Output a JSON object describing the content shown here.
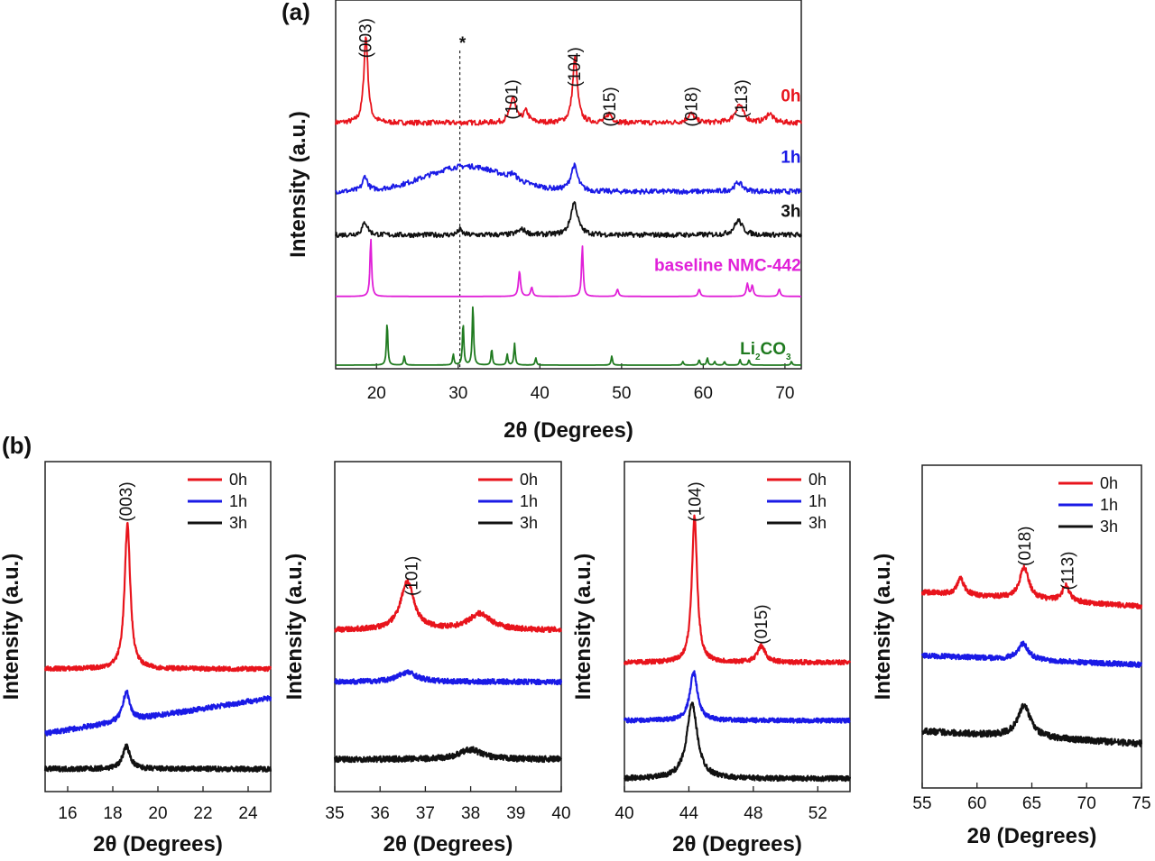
{
  "figure": {
    "panel_a_label": "(a)",
    "panel_b_label": "(b)"
  },
  "chart_data": [
    {
      "id": "a",
      "type": "line",
      "xlabel": "2θ (Degrees)",
      "ylabel": "Intensity (a.u.)",
      "xlim": [
        15,
        72
      ],
      "ylim": [
        0,
        100
      ],
      "xticks": [
        20,
        30,
        40,
        50,
        60,
        70
      ],
      "marker": {
        "x": 30.2,
        "label": "*"
      },
      "series": [
        {
          "name": "0h",
          "color": "#e8141c",
          "baseline": 68,
          "noise": 0.7,
          "label_x": 69.5,
          "label_y": 74,
          "peaks": [
            {
              "x": 18.7,
              "h": 24,
              "w": 0.3
            },
            {
              "x": 36.7,
              "h": 7,
              "w": 0.4
            },
            {
              "x": 38.3,
              "h": 3,
              "w": 0.4
            },
            {
              "x": 44.3,
              "h": 18,
              "w": 0.35
            },
            {
              "x": 48.5,
              "h": 2.5,
              "w": 0.4
            },
            {
              "x": 58.5,
              "h": 2.5,
              "w": 0.5
            },
            {
              "x": 64.4,
              "h": 5,
              "w": 0.6
            },
            {
              "x": 68.1,
              "h": 2.5,
              "w": 0.5
            }
          ]
        },
        {
          "name": "1h",
          "color": "#1a1ae6",
          "baseline": 49,
          "noise": 0.7,
          "label_x": 69.5,
          "label_y": 57,
          "hump": {
            "x": 31,
            "h": 7,
            "w": 7
          },
          "peaks": [
            {
              "x": 18.6,
              "h": 4,
              "w": 0.35
            },
            {
              "x": 36.7,
              "h": 1.5,
              "w": 0.5
            },
            {
              "x": 44.2,
              "h": 7,
              "w": 0.5
            },
            {
              "x": 64.3,
              "h": 2.5,
              "w": 0.6
            }
          ]
        },
        {
          "name": "3h",
          "color": "#111111",
          "baseline": 37,
          "noise": 0.7,
          "label_x": 69.5,
          "label_y": 42,
          "peaks": [
            {
              "x": 18.6,
              "h": 3.5,
              "w": 0.4
            },
            {
              "x": 30.2,
              "h": 1.5,
              "w": 0.3
            },
            {
              "x": 37.8,
              "h": 1.5,
              "w": 0.6
            },
            {
              "x": 44.2,
              "h": 9,
              "w": 0.5
            },
            {
              "x": 64.3,
              "h": 4,
              "w": 0.6
            }
          ]
        },
        {
          "name": "baseline NMC-442",
          "color": "#e020d8",
          "baseline": 20,
          "noise": 0,
          "label_x": 54,
          "label_y": 27,
          "peaks": [
            {
              "x": 19.3,
              "h": 16,
              "w": 0.12
            },
            {
              "x": 37.5,
              "h": 7,
              "w": 0.15
            },
            {
              "x": 39.0,
              "h": 2.5,
              "w": 0.15
            },
            {
              "x": 45.2,
              "h": 14,
              "w": 0.12
            },
            {
              "x": 49.5,
              "h": 2,
              "w": 0.15
            },
            {
              "x": 59.5,
              "h": 2,
              "w": 0.15
            },
            {
              "x": 65.4,
              "h": 3.5,
              "w": 0.15
            },
            {
              "x": 66.0,
              "h": 3,
              "w": 0.15
            },
            {
              "x": 69.3,
              "h": 2,
              "w": 0.15
            }
          ]
        },
        {
          "name": "Li2CO3",
          "color": "#1f7a1f",
          "baseline": 1,
          "noise": 0,
          "label_sub": true,
          "label_x": 64.5,
          "label_y": 4,
          "peaks": [
            {
              "x": 21.3,
              "h": 12,
              "w": 0.1
            },
            {
              "x": 23.4,
              "h": 2.5,
              "w": 0.1
            },
            {
              "x": 29.4,
              "h": 3,
              "w": 0.1
            },
            {
              "x": 30.6,
              "h": 12,
              "w": 0.1
            },
            {
              "x": 31.8,
              "h": 17,
              "w": 0.1
            },
            {
              "x": 34.1,
              "h": 4.5,
              "w": 0.1
            },
            {
              "x": 36.0,
              "h": 3,
              "w": 0.1
            },
            {
              "x": 36.9,
              "h": 6,
              "w": 0.1
            },
            {
              "x": 39.5,
              "h": 2,
              "w": 0.1
            },
            {
              "x": 48.8,
              "h": 2.5,
              "w": 0.1
            },
            {
              "x": 57.5,
              "h": 1,
              "w": 0.1
            },
            {
              "x": 59.5,
              "h": 1.5,
              "w": 0.1
            },
            {
              "x": 60.5,
              "h": 2,
              "w": 0.1
            },
            {
              "x": 61.4,
              "h": 1,
              "w": 0.1
            },
            {
              "x": 62.6,
              "h": 1,
              "w": 0.1
            },
            {
              "x": 64.5,
              "h": 1.5,
              "w": 0.1
            },
            {
              "x": 65.6,
              "h": 1.5,
              "w": 0.1
            },
            {
              "x": 70.8,
              "h": 1,
              "w": 0.1
            }
          ]
        }
      ],
      "annotations": [
        {
          "text": "(003)",
          "x": 18.7,
          "y": 97
        },
        {
          "text": "(101)",
          "x": 36.6,
          "y": 80
        },
        {
          "text": "(104)",
          "x": 44.3,
          "y": 89
        },
        {
          "text": "(015)",
          "x": 48.6,
          "y": 78
        },
        {
          "text": "(018)",
          "x": 58.6,
          "y": 78
        },
        {
          "text": "(113)",
          "x": 64.7,
          "y": 80
        }
      ]
    },
    {
      "id": "b1",
      "type": "line",
      "xlabel": "2θ (Degrees)",
      "ylabel": "Intensity (a.u.)",
      "xlim": [
        15,
        25
      ],
      "ylim": [
        0,
        100
      ],
      "xticks": [
        16,
        18,
        20,
        22,
        24
      ],
      "legend": [
        "0h",
        "1h",
        "3h"
      ],
      "series": [
        {
          "name": "0h",
          "color": "#e8141c",
          "baseline": 38,
          "slope": 0,
          "noise": 0.7,
          "peaks": [
            {
              "x": 18.65,
              "h": 45,
              "w": 0.15
            }
          ]
        },
        {
          "name": "1h",
          "color": "#1a1ae6",
          "baseline": 18,
          "slope": 1.1,
          "noise": 0.8,
          "peaks": [
            {
              "x": 18.6,
              "h": 9,
              "w": 0.18
            }
          ]
        },
        {
          "name": "3h",
          "color": "#111111",
          "baseline": 7,
          "slope": 0,
          "noise": 0.8,
          "peaks": [
            {
              "x": 18.6,
              "h": 7,
              "w": 0.2
            }
          ]
        }
      ],
      "annotations": [
        {
          "text": "(003)",
          "x": 18.6,
          "y": 96
        }
      ]
    },
    {
      "id": "b2",
      "type": "line",
      "xlabel": "2θ (Degrees)",
      "ylabel": "Intensity (a.u.)",
      "xlim": [
        35,
        40
      ],
      "ylim": [
        0,
        100
      ],
      "xticks": [
        35,
        36,
        37,
        38,
        39,
        40
      ],
      "legend": [
        "0h",
        "1h",
        "3h"
      ],
      "series": [
        {
          "name": "0h",
          "color": "#e8141c",
          "baseline": 50,
          "slope": 0,
          "noise": 0.8,
          "peaks": [
            {
              "x": 36.6,
              "h": 15,
              "w": 0.18
            },
            {
              "x": 38.2,
              "h": 5,
              "w": 0.3
            }
          ]
        },
        {
          "name": "1h",
          "color": "#1a1ae6",
          "baseline": 34,
          "slope": 0,
          "noise": 0.8,
          "peaks": [
            {
              "x": 36.6,
              "h": 3,
              "w": 0.25
            }
          ]
        },
        {
          "name": "3h",
          "color": "#111111",
          "baseline": 10,
          "slope": 0,
          "noise": 0.9,
          "peaks": [
            {
              "x": 38.0,
              "h": 3,
              "w": 0.3
            }
          ]
        }
      ],
      "annotations": [
        {
          "text": "(101)",
          "x": 36.7,
          "y": 73
        }
      ]
    },
    {
      "id": "b3",
      "type": "line",
      "xlabel": "2θ (Degrees)",
      "ylabel": "Intensity (a.u.)",
      "xlim": [
        40,
        54
      ],
      "ylim": [
        0,
        100
      ],
      "xticks": [
        40,
        44,
        48,
        52
      ],
      "legend": [
        "0h",
        "1h",
        "3h"
      ],
      "series": [
        {
          "name": "0h",
          "color": "#e8141c",
          "baseline": 40,
          "slope": 0,
          "noise": 0.7,
          "peaks": [
            {
              "x": 44.35,
              "h": 45,
              "w": 0.2
            },
            {
              "x": 48.5,
              "h": 5,
              "w": 0.3
            }
          ]
        },
        {
          "name": "1h",
          "color": "#1a1ae6",
          "baseline": 22,
          "slope": 0,
          "noise": 0.7,
          "peaks": [
            {
              "x": 44.3,
              "h": 15,
              "w": 0.28
            }
          ]
        },
        {
          "name": "3h",
          "color": "#111111",
          "baseline": 4,
          "slope": 0,
          "noise": 0.8,
          "peaks": [
            {
              "x": 44.2,
              "h": 23,
              "w": 0.4
            }
          ]
        }
      ],
      "annotations": [
        {
          "text": "(104)",
          "x": 44.4,
          "y": 96
        },
        {
          "text": "(015)",
          "x": 48.5,
          "y": 58
        }
      ]
    },
    {
      "id": "b4",
      "type": "line",
      "xlabel": "2θ (Degrees)",
      "ylabel": "Intensity (a.u.)",
      "xlim": [
        55,
        75
      ],
      "ylim": [
        0,
        100
      ],
      "xticks": [
        55,
        60,
        65,
        70,
        75
      ],
      "legend": [
        "0h",
        "1h",
        "3h"
      ],
      "series": [
        {
          "name": "0h",
          "color": "#e8141c",
          "baseline": 62,
          "slope": -0.45,
          "noise": 0.8,
          "peaks": [
            {
              "x": 58.5,
              "h": 5,
              "w": 0.4
            },
            {
              "x": 64.3,
              "h": 10,
              "w": 0.5
            },
            {
              "x": 68.1,
              "h": 5,
              "w": 0.4
            }
          ]
        },
        {
          "name": "1h",
          "color": "#1a1ae6",
          "baseline": 42,
          "slope": -0.3,
          "noise": 0.8,
          "peaks": [
            {
              "x": 64.2,
              "h": 5,
              "w": 0.6
            }
          ]
        },
        {
          "name": "3h",
          "color": "#111111",
          "baseline": 18,
          "slope": -0.4,
          "noise": 1.0,
          "peaks": [
            {
              "x": 64.3,
              "h": 10,
              "w": 0.7
            }
          ]
        }
      ],
      "annotations": [
        {
          "text": "(018)",
          "x": 64.4,
          "y": 83
        },
        {
          "text": "(113)",
          "x": 68.3,
          "y": 75
        }
      ]
    }
  ]
}
